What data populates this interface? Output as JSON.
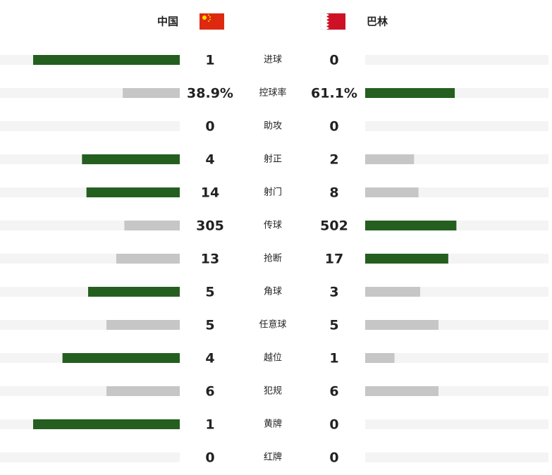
{
  "header": {
    "home": "中国",
    "away": "巴林"
  },
  "stats": [
    {
      "label": "进球",
      "home": 1,
      "away": 0
    },
    {
      "label": "控球率",
      "home": 38.9,
      "away": 61.1,
      "home_label": "38.9%",
      "away_label": "61.1%"
    },
    {
      "label": "助攻",
      "home": 0,
      "away": 0
    },
    {
      "label": "射正",
      "home": 4,
      "away": 2
    },
    {
      "label": "射门",
      "home": 14,
      "away": 8
    },
    {
      "label": "传球",
      "home": 305,
      "away": 502
    },
    {
      "label": "抢断",
      "home": 13,
      "away": 17
    },
    {
      "label": "角球",
      "home": 5,
      "away": 3
    },
    {
      "label": "任意球",
      "home": 5,
      "away": 5
    },
    {
      "label": "越位",
      "home": 4,
      "away": 1
    },
    {
      "label": "犯规",
      "home": 6,
      "away": 6
    },
    {
      "label": "黄牌",
      "home": 1,
      "away": 0
    },
    {
      "label": "红牌",
      "home": 0,
      "away": 0
    }
  ]
}
